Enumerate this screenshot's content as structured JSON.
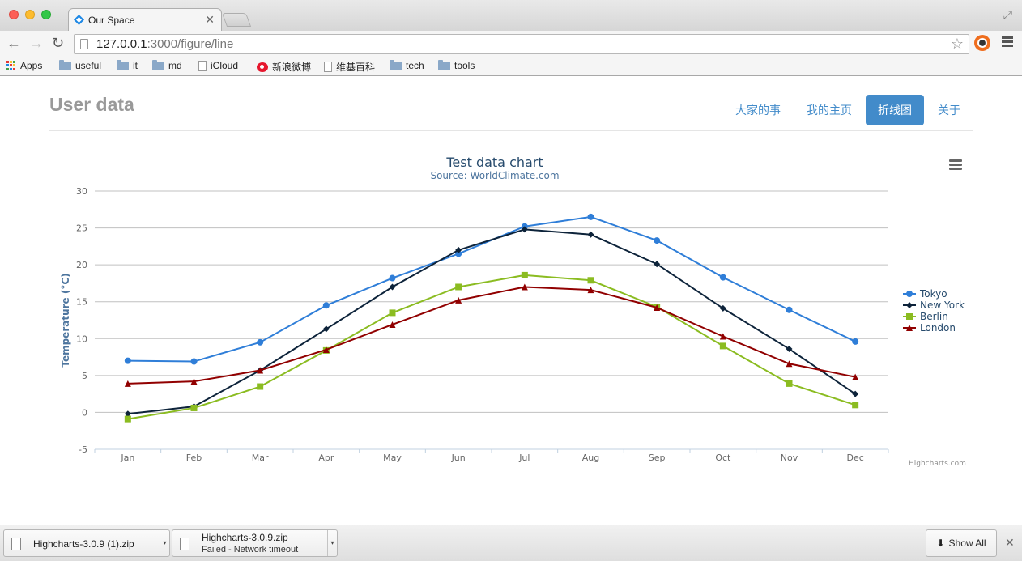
{
  "browser": {
    "tab_title": "Our Space",
    "tab_close": "✕",
    "url_host": "127.0.0.1",
    "url_rest": ":3000/figure/line",
    "bookmarks": [
      {
        "label": "Apps",
        "icon": "apps-icon"
      },
      {
        "label": "useful",
        "icon": "folder-icon"
      },
      {
        "label": "it",
        "icon": "folder-icon"
      },
      {
        "label": "md",
        "icon": "folder-icon"
      },
      {
        "label": "iCloud",
        "icon": "file-icon"
      },
      {
        "label": "新浪微博",
        "icon": "weibo-icon"
      },
      {
        "label": "维基百科",
        "icon": "file-icon"
      },
      {
        "label": "tech",
        "icon": "folder-icon"
      },
      {
        "label": "tools",
        "icon": "folder-icon"
      }
    ]
  },
  "page": {
    "brand": "User data",
    "nav": [
      "大家的事",
      "我的主页",
      "折线图",
      "关于"
    ],
    "active_nav": "折线图"
  },
  "chart_data": {
    "type": "line",
    "title": "Test data chart",
    "subtitle": "Source: WorldClimate.com",
    "ylabel": "Temperature (°C)",
    "xlabel": "",
    "categories": [
      "Jan",
      "Feb",
      "Mar",
      "Apr",
      "May",
      "Jun",
      "Jul",
      "Aug",
      "Sep",
      "Oct",
      "Nov",
      "Dec"
    ],
    "ylim": [
      -5,
      30
    ],
    "yticks": [
      -5,
      0,
      5,
      10,
      15,
      20,
      25,
      30
    ],
    "grid": true,
    "legend_position": "right",
    "credits": "Highcharts.com",
    "series": [
      {
        "name": "Tokyo",
        "color": "#2f7ed8",
        "marker": "circle",
        "values": [
          7.0,
          6.9,
          9.5,
          14.5,
          18.2,
          21.5,
          25.2,
          26.5,
          23.3,
          18.3,
          13.9,
          9.6
        ]
      },
      {
        "name": "New York",
        "color": "#0d233a",
        "marker": "diamond",
        "values": [
          -0.2,
          0.8,
          5.7,
          11.3,
          17.0,
          22.0,
          24.8,
          24.1,
          20.1,
          14.1,
          8.6,
          2.5
        ]
      },
      {
        "name": "Berlin",
        "color": "#8bbc21",
        "marker": "square",
        "values": [
          -0.9,
          0.6,
          3.5,
          8.4,
          13.5,
          17.0,
          18.6,
          17.9,
          14.3,
          9.0,
          3.9,
          1.0
        ]
      },
      {
        "name": "London",
        "color": "#910000",
        "marker": "triangle",
        "values": [
          3.9,
          4.2,
          5.7,
          8.5,
          11.9,
          15.2,
          17.0,
          16.6,
          14.2,
          10.3,
          6.6,
          4.8
        ]
      }
    ]
  },
  "downloads": [
    {
      "name": "Highcharts-3.0.9 (1).zip",
      "status": ""
    },
    {
      "name": "Highcharts-3.0.9.zip",
      "status": "Failed - Network timeout"
    }
  ],
  "shelf": {
    "show_all": "Show All",
    "close": "✕"
  }
}
